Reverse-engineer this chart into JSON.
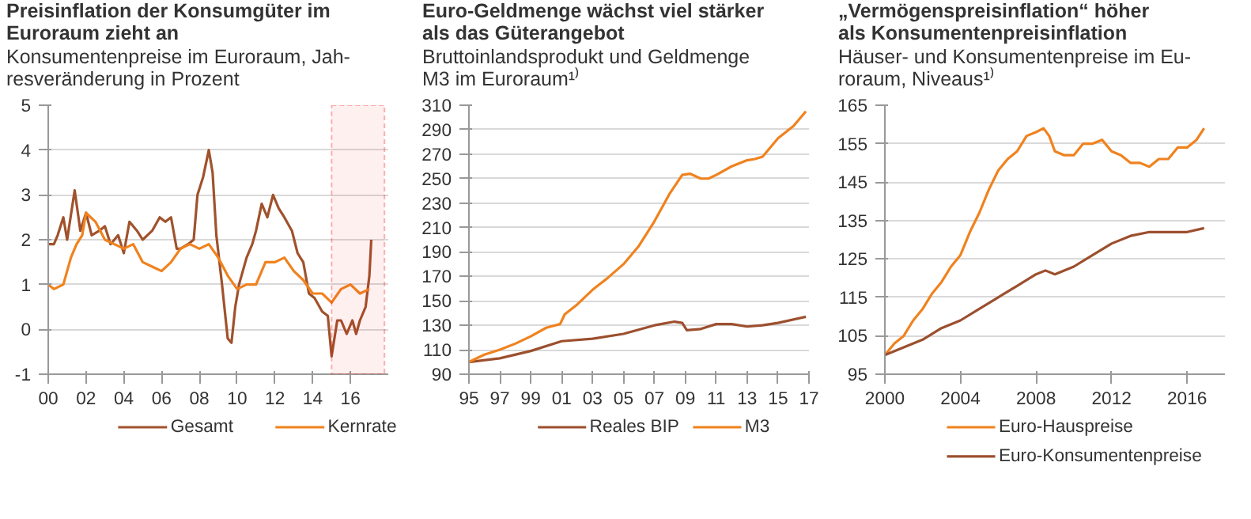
{
  "chart_data": [
    {
      "type": "line",
      "title": "Preisinflation der Konsumgüter im\nEuroraum zieht an",
      "subtitle": "Konsumentenpreise im Euroraum, Jah-\nresveränderung in Prozent",
      "xlim": [
        2000,
        2018
      ],
      "xticks": [
        {
          "value": 2000,
          "label": "00"
        },
        {
          "value": 2002,
          "label": "02"
        },
        {
          "value": 2004,
          "label": "04"
        },
        {
          "value": 2006,
          "label": "06"
        },
        {
          "value": 2008,
          "label": "08"
        },
        {
          "value": 2010,
          "label": "10"
        },
        {
          "value": 2012,
          "label": "12"
        },
        {
          "value": 2014,
          "label": "14"
        },
        {
          "value": 2016,
          "label": "16"
        }
      ],
      "ylim": [
        -1,
        5
      ],
      "yticks": [
        -1,
        0,
        1,
        2,
        3,
        4,
        5
      ],
      "grid": "y",
      "legend": "bottom",
      "bands": [
        {
          "axis": "x",
          "from": 2015,
          "to": 2017.8,
          "color": "#ff0000"
        }
      ],
      "series": [
        {
          "name": "Gesamt",
          "color": "#a0522d",
          "x": [
            2000.0,
            2000.3,
            2000.5,
            2000.8,
            2001.0,
            2001.4,
            2001.7,
            2002.0,
            2002.3,
            2002.7,
            2003.0,
            2003.3,
            2003.7,
            2004.0,
            2004.3,
            2004.7,
            2005.0,
            2005.5,
            2005.9,
            2006.2,
            2006.5,
            2006.8,
            2007.0,
            2007.4,
            2007.7,
            2007.9,
            2008.2,
            2008.5,
            2008.7,
            2008.9,
            2009.2,
            2009.4,
            2009.5,
            2009.7,
            2009.9,
            2010.1,
            2010.5,
            2010.8,
            2011.0,
            2011.3,
            2011.6,
            2011.9,
            2012.2,
            2012.5,
            2012.9,
            2013.2,
            2013.5,
            2013.8,
            2014.1,
            2014.5,
            2014.8,
            2015.0,
            2015.3,
            2015.5,
            2015.8,
            2016.1,
            2016.3,
            2016.5,
            2016.8,
            2017.0,
            2017.1
          ],
          "values": [
            1.9,
            1.9,
            2.1,
            2.5,
            2.0,
            3.1,
            2.2,
            2.6,
            2.1,
            2.2,
            2.3,
            1.9,
            2.1,
            1.7,
            2.4,
            2.2,
            2.0,
            2.2,
            2.5,
            2.4,
            2.5,
            1.8,
            1.8,
            1.9,
            2.0,
            3.0,
            3.4,
            4.0,
            3.5,
            2.1,
            1.0,
            0.2,
            -0.2,
            -0.3,
            0.5,
            1.0,
            1.6,
            1.9,
            2.2,
            2.8,
            2.5,
            3.0,
            2.7,
            2.5,
            2.2,
            1.7,
            1.5,
            0.8,
            0.7,
            0.4,
            0.3,
            -0.6,
            0.2,
            0.2,
            -0.1,
            0.2,
            -0.1,
            0.2,
            0.5,
            1.2,
            2.0
          ]
        },
        {
          "name": "Kernrate",
          "color": "#f0821e",
          "x": [
            2000.0,
            2000.3,
            2000.8,
            2001.2,
            2001.5,
            2001.8,
            2002.0,
            2002.5,
            2003.0,
            2003.5,
            2004.0,
            2004.5,
            2005.0,
            2005.5,
            2006.0,
            2006.5,
            2007.0,
            2007.5,
            2008.0,
            2008.5,
            2009.0,
            2009.5,
            2010.0,
            2010.5,
            2011.0,
            2011.5,
            2012.0,
            2012.5,
            2013.0,
            2013.5,
            2014.0,
            2014.5,
            2015.0,
            2015.5,
            2016.0,
            2016.5,
            2017.0
          ],
          "values": [
            1.0,
            0.9,
            1.0,
            1.6,
            1.9,
            2.1,
            2.6,
            2.4,
            2.0,
            1.9,
            1.8,
            1.9,
            1.5,
            1.4,
            1.3,
            1.5,
            1.8,
            1.9,
            1.8,
            1.9,
            1.6,
            1.2,
            0.9,
            1.0,
            1.0,
            1.5,
            1.5,
            1.6,
            1.3,
            1.1,
            0.8,
            0.8,
            0.6,
            0.9,
            1.0,
            0.8,
            0.9
          ]
        }
      ]
    },
    {
      "type": "line",
      "title": "Euro-Geldmenge wächst viel stärker\nals das Güterangebot",
      "subtitle": "Bruttoinlandsprodukt und Geldmenge\nM3 im Euroraum¹⁾",
      "xlim": [
        1995,
        2017
      ],
      "xticks": [
        {
          "value": 1995,
          "label": "95"
        },
        {
          "value": 1997,
          "label": "97"
        },
        {
          "value": 1999,
          "label": "99"
        },
        {
          "value": 2001,
          "label": "01"
        },
        {
          "value": 2003,
          "label": "03"
        },
        {
          "value": 2005,
          "label": "05"
        },
        {
          "value": 2007,
          "label": "07"
        },
        {
          "value": 2009,
          "label": "09"
        },
        {
          "value": 2011,
          "label": "11"
        },
        {
          "value": 2013,
          "label": "13"
        },
        {
          "value": 2015,
          "label": "15"
        },
        {
          "value": 2017,
          "label": "17"
        }
      ],
      "ylim": [
        90,
        310
      ],
      "yticks": [
        90,
        110,
        130,
        150,
        170,
        190,
        210,
        230,
        250,
        270,
        290,
        310
      ],
      "grid": "y",
      "legend": "bottom",
      "series": [
        {
          "name": "Reales BIP",
          "color": "#9c4f2e",
          "x": [
            1995,
            1997,
            1999,
            2001,
            2003,
            2005,
            2007,
            2008.3,
            2008.8,
            2009.1,
            2010,
            2011,
            2012,
            2013,
            2014,
            2015,
            2016.8
          ],
          "values": [
            100,
            103,
            109,
            117,
            119,
            123,
            130,
            133,
            132,
            126,
            127,
            131,
            131,
            129,
            130,
            132,
            137
          ]
        },
        {
          "name": "M3",
          "color": "#f0821e",
          "x": [
            1995,
            1996,
            1997,
            1998,
            1999,
            2000,
            2000.9,
            2001.2,
            2002,
            2003,
            2004,
            2005,
            2006,
            2007,
            2008,
            2008.8,
            2009.3,
            2010,
            2010.5,
            2011,
            2012,
            2013,
            2013.5,
            2014,
            2015,
            2016,
            2016.8
          ],
          "values": [
            100,
            106,
            110,
            115,
            121,
            128,
            131,
            139,
            147,
            159,
            169,
            180,
            195,
            215,
            238,
            253,
            254,
            250,
            250,
            253,
            260,
            265,
            266,
            268,
            283,
            293,
            305
          ]
        }
      ]
    },
    {
      "type": "line",
      "title": "„Vermögenspreisinflation“ höher\nals Konsumentenpreisinflation",
      "subtitle": "Häuser- und Konsumentenpreise im Eu-\nroraum, Niveaus¹⁾",
      "xlim": [
        2000,
        2018
      ],
      "xticks": [
        2000,
        2004,
        2008,
        2012,
        2016
      ],
      "ylim": [
        95,
        165
      ],
      "yticks": [
        95,
        105,
        115,
        125,
        135,
        145,
        155,
        165
      ],
      "grid": "y",
      "legend": "bottom",
      "series": [
        {
          "name": "Euro-Hauspreise",
          "color": "#f0821e",
          "x": [
            2000,
            2000.5,
            2001,
            2001.5,
            2002,
            2002.5,
            2003,
            2003.5,
            2004,
            2004.5,
            2005,
            2005.5,
            2006,
            2006.5,
            2007,
            2007.5,
            2008,
            2008.4,
            2008.7,
            2009,
            2009.5,
            2010,
            2010.5,
            2011,
            2011.5,
            2012,
            2012.5,
            2013,
            2013.5,
            2014,
            2014.5,
            2015,
            2015.5,
            2016,
            2016.5,
            2016.9
          ],
          "values": [
            100,
            103,
            105,
            109,
            112,
            116,
            119,
            123,
            126,
            132,
            137,
            143,
            148,
            151,
            153,
            157,
            158,
            159,
            157,
            153,
            152,
            152,
            155,
            155,
            156,
            153,
            152,
            150,
            150,
            149,
            151,
            151,
            154,
            154,
            156,
            159
          ]
        },
        {
          "name": "Euro-Konsumentenpreise",
          "color": "#9c4f2e",
          "x": [
            2000,
            2001,
            2002,
            2003,
            2004,
            2005,
            2006,
            2007,
            2008,
            2008.5,
            2009,
            2010,
            2011,
            2012,
            2013,
            2014,
            2015,
            2016,
            2016.9
          ],
          "values": [
            100,
            102,
            104,
            107,
            109,
            112,
            115,
            118,
            121,
            122,
            121,
            123,
            126,
            129,
            131,
            132,
            132,
            132,
            133
          ]
        }
      ]
    }
  ]
}
